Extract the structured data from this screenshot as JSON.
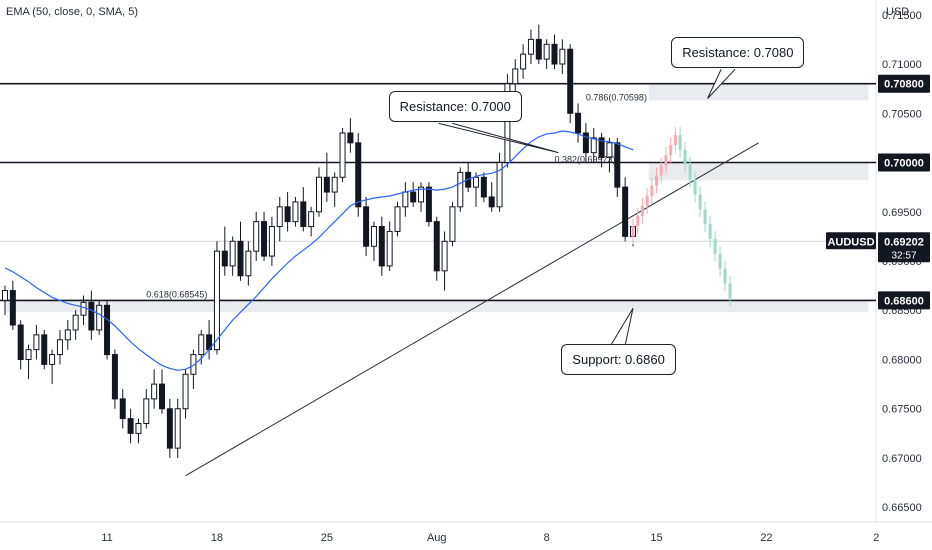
{
  "indicator": "EMA (50, close, 0, SMA, 5)",
  "currency": "USD",
  "chart_data": {
    "type": "candlestick",
    "price_axis": {
      "min": 0.6635,
      "max": 0.7165,
      "ticks": [
        "0.71500",
        "0.71000",
        "0.70500",
        "0.70000",
        "0.69500",
        "0.69000",
        "0.68500",
        "0.68000",
        "0.67500",
        "0.67000",
        "0.66500"
      ],
      "tick_values": [
        0.715,
        0.71,
        0.705,
        0.7,
        0.695,
        0.69,
        0.685,
        0.68,
        0.675,
        0.67,
        0.665
      ]
    },
    "time_axis": {
      "labels": [
        "11",
        "18",
        "25",
        "Aug",
        "8",
        "15",
        "22",
        "2"
      ],
      "label_bar_index": [
        13,
        27,
        41,
        55,
        69,
        83,
        97,
        111
      ]
    },
    "level_tags": [
      {
        "label": "0.70800",
        "price": 0.708,
        "color": "#131722"
      },
      {
        "label": "0.70000",
        "price": 0.7,
        "color": "#131722"
      },
      {
        "label": "0.68600",
        "price": 0.686,
        "color": "#131722"
      }
    ],
    "current_price": {
      "symbol": "AUDUSD",
      "value": "0.69202",
      "countdown": "32:57",
      "price": 0.692
    },
    "fib_labels": [
      {
        "text": "0.618(0.68545)",
        "price": 0.686,
        "bar": 18
      },
      {
        "text": "0.382(0.69973)",
        "price": 0.6997,
        "bar": 70
      },
      {
        "text": "0.786(0.70598)",
        "price": 0.706,
        "bar": 74
      }
    ],
    "callouts": [
      {
        "text": "Resistance: 0.7000",
        "box_bar": 56,
        "box_price": 0.7057,
        "pointer_bar": 70.5,
        "pointer_price": 0.701
      },
      {
        "text": "Resistance: 0.7080",
        "box_bar": 92,
        "box_price": 0.7112,
        "pointer_bar": 89.5,
        "pointer_price": 0.7065
      },
      {
        "text": "Support: 0.6860",
        "box_bar": 78,
        "box_price": 0.68,
        "pointer_bar": 80,
        "pointer_price": 0.6852
      }
    ],
    "zones": [
      {
        "from_bar": 82,
        "to_bar": 110,
        "low": 0.7063,
        "high": 0.708
      },
      {
        "from_bar": 82,
        "to_bar": 110,
        "low": 0.6982,
        "high": 0.7
      },
      {
        "from_bar": 0,
        "to_bar": 110,
        "low": 0.6848,
        "high": 0.686
      }
    ],
    "trendline": {
      "from_bar": 23,
      "from_price": 0.6682,
      "to_bar": 96,
      "to_price": 0.702
    },
    "candles": [
      [
        0.686,
        0.6875,
        0.6845,
        0.687
      ],
      [
        0.687,
        0.688,
        0.683,
        0.6835
      ],
      [
        0.6835,
        0.684,
        0.679,
        0.68
      ],
      [
        0.68,
        0.6815,
        0.678,
        0.681
      ],
      [
        0.681,
        0.6835,
        0.68,
        0.6825
      ],
      [
        0.6825,
        0.683,
        0.679,
        0.6795
      ],
      [
        0.6795,
        0.681,
        0.6775,
        0.6805
      ],
      [
        0.6805,
        0.683,
        0.6795,
        0.682
      ],
      [
        0.682,
        0.684,
        0.681,
        0.683
      ],
      [
        0.683,
        0.685,
        0.682,
        0.6845
      ],
      [
        0.6845,
        0.6865,
        0.6835,
        0.6858
      ],
      [
        0.6858,
        0.687,
        0.682,
        0.683
      ],
      [
        0.683,
        0.686,
        0.6825,
        0.6855
      ],
      [
        0.6855,
        0.686,
        0.68,
        0.6805
      ],
      [
        0.6805,
        0.681,
        0.675,
        0.676
      ],
      [
        0.676,
        0.677,
        0.673,
        0.674
      ],
      [
        0.674,
        0.675,
        0.6715,
        0.6725
      ],
      [
        0.6725,
        0.674,
        0.6715,
        0.6735
      ],
      [
        0.6735,
        0.677,
        0.673,
        0.676
      ],
      [
        0.676,
        0.679,
        0.675,
        0.6775
      ],
      [
        0.6775,
        0.679,
        0.6745,
        0.675
      ],
      [
        0.675,
        0.676,
        0.67,
        0.671
      ],
      [
        0.671,
        0.676,
        0.67,
        0.675
      ],
      [
        0.675,
        0.679,
        0.674,
        0.6785
      ],
      [
        0.6785,
        0.681,
        0.677,
        0.6805
      ],
      [
        0.6805,
        0.683,
        0.6795,
        0.6825
      ],
      [
        0.6825,
        0.684,
        0.68,
        0.681
      ],
      [
        0.681,
        0.692,
        0.6805,
        0.691
      ],
      [
        0.691,
        0.6935,
        0.6885,
        0.6895
      ],
      [
        0.6895,
        0.6925,
        0.6885,
        0.692
      ],
      [
        0.692,
        0.694,
        0.688,
        0.6885
      ],
      [
        0.6885,
        0.692,
        0.6875,
        0.691
      ],
      [
        0.691,
        0.695,
        0.69,
        0.694
      ],
      [
        0.694,
        0.695,
        0.69,
        0.6905
      ],
      [
        0.6905,
        0.6945,
        0.6895,
        0.6935
      ],
      [
        0.6935,
        0.6965,
        0.692,
        0.6955
      ],
      [
        0.6955,
        0.697,
        0.693,
        0.694
      ],
      [
        0.694,
        0.6965,
        0.6935,
        0.696
      ],
      [
        0.696,
        0.6975,
        0.693,
        0.6935
      ],
      [
        0.6935,
        0.6955,
        0.6925,
        0.695
      ],
      [
        0.695,
        0.6995,
        0.6945,
        0.6985
      ],
      [
        0.6985,
        0.701,
        0.696,
        0.697
      ],
      [
        0.697,
        0.699,
        0.6955,
        0.6985
      ],
      [
        0.6985,
        0.7035,
        0.698,
        0.703
      ],
      [
        0.703,
        0.7045,
        0.701,
        0.702
      ],
      [
        0.702,
        0.703,
        0.6945,
        0.6955
      ],
      [
        0.6955,
        0.6965,
        0.6905,
        0.6915
      ],
      [
        0.6915,
        0.694,
        0.69,
        0.6935
      ],
      [
        0.6935,
        0.6945,
        0.6885,
        0.6895
      ],
      [
        0.6895,
        0.694,
        0.689,
        0.693
      ],
      [
        0.693,
        0.696,
        0.6925,
        0.6955
      ],
      [
        0.6955,
        0.698,
        0.6945,
        0.697
      ],
      [
        0.697,
        0.698,
        0.6955,
        0.696
      ],
      [
        0.696,
        0.698,
        0.695,
        0.6975
      ],
      [
        0.6975,
        0.698,
        0.6935,
        0.694
      ],
      [
        0.694,
        0.6945,
        0.688,
        0.689
      ],
      [
        0.689,
        0.693,
        0.687,
        0.692
      ],
      [
        0.692,
        0.696,
        0.6915,
        0.6955
      ],
      [
        0.6955,
        0.6995,
        0.695,
        0.699
      ],
      [
        0.699,
        0.7,
        0.697,
        0.6975
      ],
      [
        0.6975,
        0.699,
        0.6955,
        0.6985
      ],
      [
        0.6985,
        0.699,
        0.696,
        0.6965
      ],
      [
        0.6965,
        0.698,
        0.695,
        0.6955
      ],
      [
        0.6955,
        0.701,
        0.695,
        0.7
      ],
      [
        0.7,
        0.709,
        0.6995,
        0.708
      ],
      [
        0.708,
        0.7105,
        0.706,
        0.7095
      ],
      [
        0.7095,
        0.712,
        0.7085,
        0.711
      ],
      [
        0.711,
        0.7135,
        0.71,
        0.7125
      ],
      [
        0.7125,
        0.714,
        0.71,
        0.7105
      ],
      [
        0.7105,
        0.7125,
        0.7095,
        0.712
      ],
      [
        0.712,
        0.713,
        0.7095,
        0.71
      ],
      [
        0.71,
        0.7125,
        0.709,
        0.7115
      ],
      [
        0.7115,
        0.712,
        0.704,
        0.705
      ],
      [
        0.705,
        0.706,
        0.702,
        0.703
      ],
      [
        0.703,
        0.704,
        0.7,
        0.701
      ],
      [
        0.701,
        0.7035,
        0.7,
        0.7025
      ],
      [
        0.7025,
        0.703,
        0.6995,
        0.7005
      ],
      [
        0.7005,
        0.7025,
        0.699,
        0.702
      ],
      [
        0.702,
        0.7025,
        0.6965,
        0.6975
      ],
      [
        0.6975,
        0.6985,
        0.692,
        0.6925
      ],
      [
        0.6925,
        0.694,
        0.6915,
        0.6935
      ]
    ],
    "ema_50": [
      0.6893,
      0.6889,
      0.6884,
      0.6879,
      0.6873,
      0.6868,
      0.6863,
      0.686,
      0.6857,
      0.6855,
      0.6853,
      0.685,
      0.6846,
      0.6841,
      0.6834,
      0.6826,
      0.6818,
      0.6811,
      0.6805,
      0.6799,
      0.6794,
      0.6791,
      0.6789,
      0.679,
      0.6794,
      0.6801,
      0.681,
      0.682,
      0.683,
      0.684,
      0.6848,
      0.6856,
      0.6864,
      0.6873,
      0.6882,
      0.689,
      0.6898,
      0.6905,
      0.6911,
      0.6917,
      0.6924,
      0.6932,
      0.694,
      0.6948,
      0.6956,
      0.696,
      0.6962,
      0.6964,
      0.6965,
      0.6966,
      0.6968,
      0.697,
      0.6972,
      0.6973,
      0.6973,
      0.6972,
      0.6973,
      0.6975,
      0.6979,
      0.6983,
      0.6986,
      0.6988,
      0.6989,
      0.6992,
      0.6998,
      0.7006,
      0.7014,
      0.7021,
      0.7026,
      0.7029,
      0.703,
      0.7032,
      0.7031,
      0.7029,
      0.7026,
      0.7024,
      0.7022,
      0.7021,
      0.7019,
      0.7016,
      0.7013
    ],
    "projection": {
      "color_up": "#f7a9b4",
      "color_down": "#9fd8c8",
      "points": [
        [
          80,
          0.6925
        ],
        [
          86,
          0.7028
        ],
        [
          93,
          0.6862
        ]
      ]
    }
  }
}
